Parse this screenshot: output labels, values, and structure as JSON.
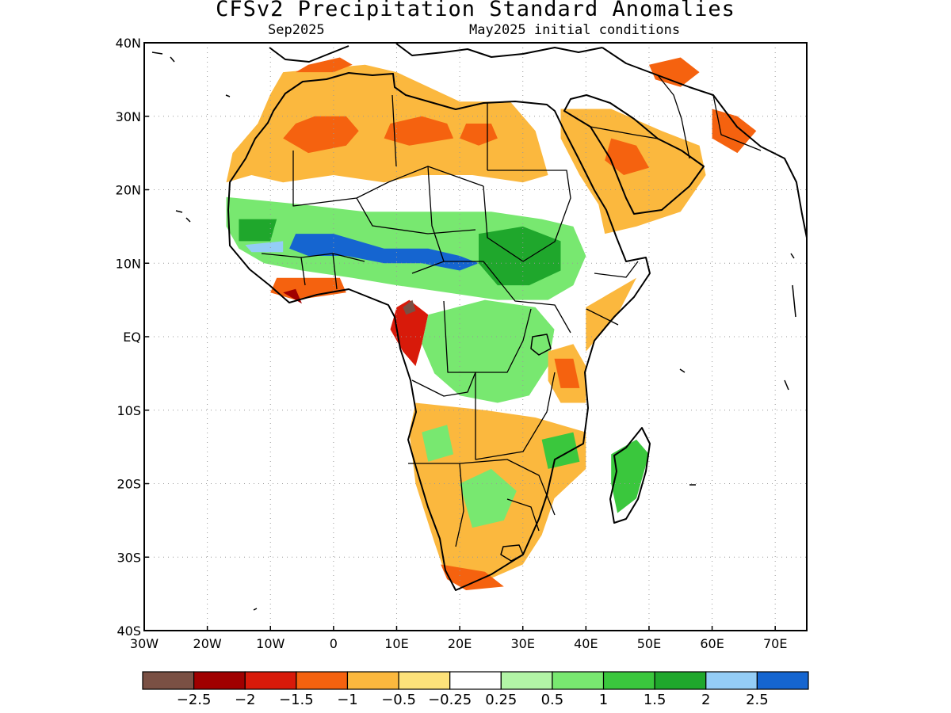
{
  "title": "CFSv2 Precipitation Standard Anomalies",
  "subtitle_left": "Sep2025",
  "subtitle_right": "May2025 initial conditions",
  "axes": {
    "lon_range": [
      -30,
      75
    ],
    "lat_range": [
      -40,
      40
    ],
    "x_ticks": [
      {
        "value": -30,
        "label": "30W"
      },
      {
        "value": -20,
        "label": "20W"
      },
      {
        "value": -10,
        "label": "10W"
      },
      {
        "value": 0,
        "label": "0"
      },
      {
        "value": 10,
        "label": "10E"
      },
      {
        "value": 20,
        "label": "20E"
      },
      {
        "value": 30,
        "label": "30E"
      },
      {
        "value": 40,
        "label": "40E"
      },
      {
        "value": 50,
        "label": "50E"
      },
      {
        "value": 60,
        "label": "60E"
      },
      {
        "value": 70,
        "label": "70E"
      }
    ],
    "y_ticks": [
      {
        "value": 40,
        "label": "40N"
      },
      {
        "value": 30,
        "label": "30N"
      },
      {
        "value": 20,
        "label": "20N"
      },
      {
        "value": 10,
        "label": "10N"
      },
      {
        "value": 0,
        "label": "EQ"
      },
      {
        "value": -10,
        "label": "10S"
      },
      {
        "value": -20,
        "label": "20S"
      },
      {
        "value": -30,
        "label": "30S"
      },
      {
        "value": -40,
        "label": "40S"
      }
    ],
    "grid": "dotted"
  },
  "colorbar": {
    "colors": [
      "#7a5044",
      "#a00000",
      "#d81a0a",
      "#f5620f",
      "#fbb83e",
      "#fde27a",
      "#ffffff",
      "#b2f5a6",
      "#78e870",
      "#3ac73d",
      "#1fa72c",
      "#94cdf6",
      "#1565d0"
    ],
    "labels": [
      "-2.5",
      "-2",
      "-1.5",
      "-1",
      "-0.5",
      "-0.25",
      "0.25",
      "0.5",
      "1",
      "1.5",
      "2",
      "2.5"
    ]
  },
  "anomaly_regions": [
    {
      "category": "-0.5",
      "lonlat": [
        [
          -8,
          36
        ],
        [
          5,
          37
        ],
        [
          10,
          36
        ],
        [
          20,
          32
        ],
        [
          28,
          32
        ],
        [
          32,
          28
        ],
        [
          34,
          22
        ],
        [
          30,
          21
        ],
        [
          22,
          22
        ],
        [
          14,
          22
        ],
        [
          8,
          21
        ],
        [
          0,
          22
        ],
        [
          -8,
          21
        ],
        [
          -13,
          22
        ],
        [
          -17,
          21
        ],
        [
          -16,
          25
        ],
        [
          -12,
          29
        ],
        [
          -10,
          33
        ]
      ]
    },
    {
      "category": "-1",
      "lonlat": [
        [
          -8,
          27
        ],
        [
          -4,
          25
        ],
        [
          2,
          26
        ],
        [
          4,
          28
        ],
        [
          2,
          30
        ],
        [
          -3,
          30
        ],
        [
          -6,
          29
        ]
      ]
    },
    {
      "category": "-1",
      "lonlat": [
        [
          8,
          27
        ],
        [
          12,
          26
        ],
        [
          19,
          27
        ],
        [
          18,
          29
        ],
        [
          14,
          30
        ],
        [
          9,
          29
        ]
      ]
    },
    {
      "category": "-1",
      "lonlat": [
        [
          20,
          27
        ],
        [
          23,
          26
        ],
        [
          26,
          27
        ],
        [
          25,
          29
        ],
        [
          21,
          29
        ]
      ]
    },
    {
      "category": "-1",
      "lonlat": [
        [
          -6,
          36
        ],
        [
          0,
          36
        ],
        [
          3,
          37
        ],
        [
          1,
          38
        ],
        [
          -4,
          37
        ]
      ]
    },
    {
      "category": "-0.5",
      "lonlat": [
        [
          36,
          31
        ],
        [
          44,
          31
        ],
        [
          52,
          28
        ],
        [
          58,
          26
        ],
        [
          59,
          22
        ],
        [
          55,
          17
        ],
        [
          48,
          15
        ],
        [
          43,
          14
        ],
        [
          42,
          18
        ],
        [
          39,
          22
        ],
        [
          36,
          27
        ]
      ]
    },
    {
      "category": "-1",
      "lonlat": [
        [
          44,
          27
        ],
        [
          48,
          26
        ],
        [
          50,
          23
        ],
        [
          46,
          22
        ],
        [
          43,
          24
        ]
      ]
    },
    {
      "category": "-1",
      "lonlat": [
        [
          60,
          31
        ],
        [
          64,
          30
        ],
        [
          67,
          28
        ],
        [
          64,
          25
        ],
        [
          60,
          27
        ]
      ]
    },
    {
      "category": "-1",
      "lonlat": [
        [
          50,
          37
        ],
        [
          55,
          38
        ],
        [
          58,
          36
        ],
        [
          55,
          34
        ],
        [
          51,
          35
        ]
      ]
    },
    {
      "category": "0.5",
      "lonlat": [
        [
          -17,
          19
        ],
        [
          -5,
          18
        ],
        [
          5,
          17
        ],
        [
          15,
          17
        ],
        [
          25,
          17
        ],
        [
          33,
          16
        ],
        [
          38,
          15
        ],
        [
          40,
          11
        ],
        [
          38,
          7
        ],
        [
          34,
          5
        ],
        [
          26,
          5
        ],
        [
          18,
          6
        ],
        [
          10,
          7
        ],
        [
          3,
          8
        ],
        [
          -5,
          9
        ],
        [
          -11,
          10
        ],
        [
          -15,
          12
        ],
        [
          -17,
          15
        ]
      ]
    },
    {
      "category": "1.5",
      "lonlat": [
        [
          23,
          14
        ],
        [
          30,
          15
        ],
        [
          36,
          13
        ],
        [
          36,
          9
        ],
        [
          31,
          7
        ],
        [
          26,
          7
        ],
        [
          23,
          10
        ]
      ]
    },
    {
      "category": "1.5",
      "lonlat": [
        [
          -15,
          16
        ],
        [
          -9,
          16
        ],
        [
          -10,
          13
        ],
        [
          -15,
          13
        ]
      ]
    },
    {
      "category": "2.5",
      "lonlat": [
        [
          -6,
          14
        ],
        [
          0,
          14
        ],
        [
          8,
          12
        ],
        [
          15,
          12
        ],
        [
          20,
          11
        ],
        [
          23,
          10
        ],
        [
          20,
          9
        ],
        [
          14,
          10
        ],
        [
          8,
          10
        ],
        [
          2,
          11
        ],
        [
          -4,
          11
        ],
        [
          -7,
          12
        ]
      ]
    },
    {
      "category": "2",
      "lonlat": [
        [
          -14,
          12.5
        ],
        [
          -8,
          13
        ],
        [
          -8,
          11.5
        ],
        [
          -13,
          11.5
        ]
      ]
    },
    {
      "category": "-1",
      "lonlat": [
        [
          -10,
          6
        ],
        [
          -6,
          5
        ],
        [
          -2,
          5.5
        ],
        [
          2,
          6
        ],
        [
          1,
          8
        ],
        [
          -4,
          8
        ],
        [
          -9,
          8
        ]
      ]
    },
    {
      "category": "-2",
      "lonlat": [
        [
          -8,
          6
        ],
        [
          -5,
          4.5
        ],
        [
          -6,
          6.5
        ]
      ]
    },
    {
      "category": "-1.5",
      "lonlat": [
        [
          10,
          4
        ],
        [
          12,
          5
        ],
        [
          15,
          3
        ],
        [
          14,
          -1
        ],
        [
          13,
          -4
        ],
        [
          11,
          -2
        ],
        [
          9,
          1
        ]
      ]
    },
    {
      "category": "-2.5",
      "lonlat": [
        [
          11,
          4
        ],
        [
          12.5,
          5
        ],
        [
          13,
          3.5
        ],
        [
          11.5,
          3
        ]
      ]
    },
    {
      "category": "0.5",
      "lonlat": [
        [
          15,
          3
        ],
        [
          24,
          5
        ],
        [
          32,
          4
        ],
        [
          35,
          1
        ],
        [
          34,
          -4
        ],
        [
          31,
          -8
        ],
        [
          26,
          -9
        ],
        [
          20,
          -8
        ],
        [
          16,
          -5
        ],
        [
          14,
          -1
        ]
      ]
    },
    {
      "category": "-0.5",
      "lonlat": [
        [
          34,
          -2
        ],
        [
          38,
          -1
        ],
        [
          40,
          -4
        ],
        [
          40,
          -9
        ],
        [
          36,
          -9
        ],
        [
          34,
          -6
        ]
      ]
    },
    {
      "category": "-1",
      "lonlat": [
        [
          35,
          -3
        ],
        [
          38,
          -3
        ],
        [
          39,
          -7
        ],
        [
          36,
          -7
        ]
      ]
    },
    {
      "category": "-0.5",
      "lonlat": [
        [
          40,
          4
        ],
        [
          44,
          6
        ],
        [
          48,
          8
        ],
        [
          45,
          3
        ],
        [
          42,
          0
        ],
        [
          40,
          -2
        ]
      ]
    },
    {
      "category": "-0.5",
      "lonlat": [
        [
          13,
          -9
        ],
        [
          24,
          -10
        ],
        [
          32,
          -11
        ],
        [
          40,
          -13
        ],
        [
          40,
          -18
        ],
        [
          35,
          -22
        ],
        [
          33,
          -27
        ],
        [
          30,
          -31
        ],
        [
          22,
          -34
        ],
        [
          18,
          -33
        ],
        [
          16,
          -28
        ],
        [
          13,
          -20
        ],
        [
          12,
          -13
        ]
      ]
    },
    {
      "category": "0.5",
      "lonlat": [
        [
          14,
          -13
        ],
        [
          18,
          -12
        ],
        [
          19,
          -16
        ],
        [
          15,
          -17
        ]
      ]
    },
    {
      "category": "0.5",
      "lonlat": [
        [
          20,
          -20
        ],
        [
          25,
          -18
        ],
        [
          29,
          -21
        ],
        [
          27,
          -25
        ],
        [
          22,
          -26
        ]
      ]
    },
    {
      "category": "1",
      "lonlat": [
        [
          33,
          -14
        ],
        [
          38,
          -13
        ],
        [
          39,
          -17
        ],
        [
          34,
          -18
        ]
      ]
    },
    {
      "category": "-1",
      "lonlat": [
        [
          17,
          -31
        ],
        [
          24,
          -32
        ],
        [
          27,
          -34
        ],
        [
          21,
          -34.5
        ],
        [
          18,
          -33
        ]
      ]
    },
    {
      "category": "1",
      "lonlat": [
        [
          44,
          -16
        ],
        [
          48,
          -14
        ],
        [
          50,
          -16
        ],
        [
          48,
          -22
        ],
        [
          45,
          -24
        ],
        [
          44,
          -20
        ]
      ]
    }
  ]
}
